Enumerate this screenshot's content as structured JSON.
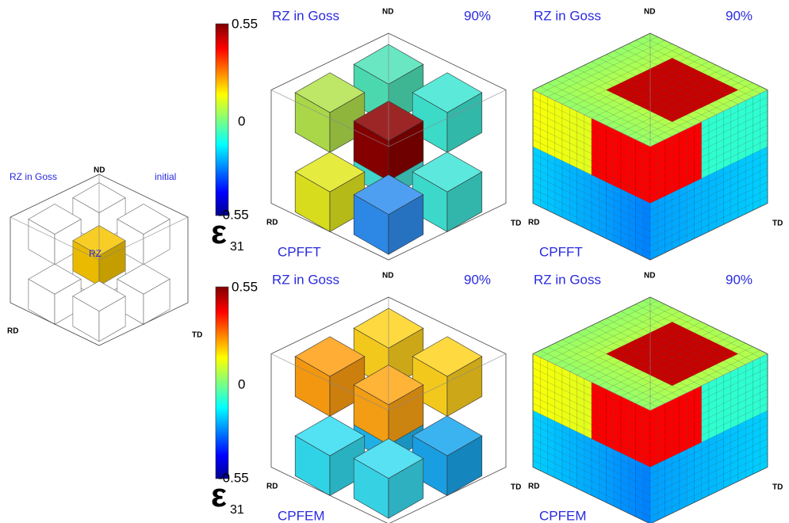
{
  "initial_panel": {
    "title": "RZ in Goss",
    "state": "initial",
    "axis_labels": {
      "nd": "ND",
      "rd": "RD",
      "td": "TD"
    },
    "region_label": "RZ"
  },
  "colorbars": [
    {
      "max": 0.55,
      "mid": 0,
      "min": -0.55,
      "symbol": "ε",
      "subscript": "31"
    },
    {
      "max": 0.55,
      "mid": 0,
      "min": -0.55,
      "symbol": "ε",
      "subscript": "31"
    }
  ],
  "panels": [
    {
      "title": "RZ in Goss",
      "deformation": "90%",
      "method": "CPFFT",
      "axis_labels": {
        "nd": "ND",
        "rd": "RD",
        "td": "TD"
      }
    },
    {
      "title": "RZ in Goss",
      "deformation": "90%",
      "method": "CPFFT",
      "axis_labels": {
        "nd": "ND",
        "rd": "RD",
        "td": "TD"
      }
    },
    {
      "title": "RZ in Goss",
      "deformation": "90%",
      "method": "CPFEM",
      "axis_labels": {
        "nd": "ND",
        "rd": "RD",
        "td": "TD"
      }
    },
    {
      "title": "RZ in Goss",
      "deformation": "90%",
      "method": "CPFEM",
      "axis_labels": {
        "nd": "ND",
        "rd": "RD",
        "td": "TD"
      }
    }
  ]
}
